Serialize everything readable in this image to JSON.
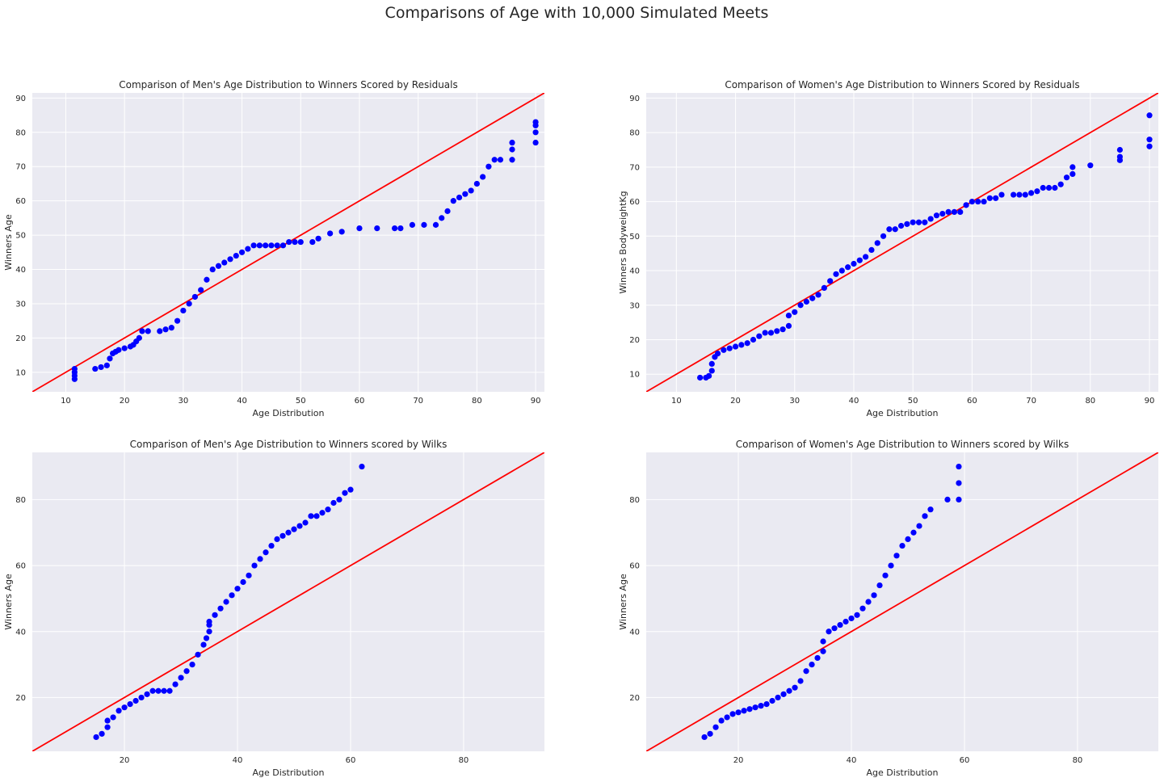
{
  "figure_title": "Comparisons of Age with 10,000 Simulated Meets",
  "colors": {
    "points": "#0000ff",
    "reference_line": "#ff0000",
    "axes_background": "#eaeaf2",
    "grid": "#ffffff"
  },
  "chart_data": [
    {
      "type": "scatter",
      "title": "Comparison of Men's Age Distribution to Winners Scored by Residuals",
      "xlabel": "Age Distribution",
      "ylabel": "Winners Age",
      "xlim": [
        4.3,
        91.5
      ],
      "ylim": [
        4.3,
        91.5
      ],
      "xticks": [
        10,
        20,
        30,
        40,
        50,
        60,
        70,
        80,
        90
      ],
      "yticks": [
        10,
        20,
        30,
        40,
        50,
        60,
        70,
        80,
        90
      ],
      "reference_line": "y = x",
      "grid": true,
      "series": [
        {
          "x": [
            11.5,
            11.5,
            11.5,
            11.5,
            15,
            16,
            17,
            17.5,
            18,
            18.5,
            19,
            20,
            21,
            21.5,
            22,
            22.5,
            23,
            24,
            26,
            27,
            28,
            29,
            30,
            31,
            32,
            33,
            34,
            35,
            36,
            37,
            38,
            39,
            40,
            41,
            42,
            43,
            44,
            45,
            46,
            47,
            48,
            49,
            50,
            52,
            53,
            55,
            57,
            60,
            63,
            66,
            67,
            69,
            71,
            73,
            74,
            75,
            76,
            77,
            78,
            79,
            80,
            81,
            82,
            83,
            84,
            86,
            86,
            86,
            90,
            90,
            90,
            90
          ],
          "y": [
            8,
            9,
            10,
            11,
            11,
            11.5,
            12,
            14,
            15.5,
            16,
            16.5,
            17,
            17.5,
            18,
            19,
            20,
            22,
            22,
            22,
            22.5,
            23,
            25,
            28,
            30,
            32,
            34,
            37,
            40,
            41,
            42,
            43,
            44,
            45,
            46,
            47,
            47,
            47,
            47,
            47,
            47,
            48,
            48,
            48,
            48,
            49,
            50.5,
            51,
            52,
            52,
            52,
            52,
            53,
            53,
            53,
            55,
            57,
            60,
            61,
            62,
            63,
            65,
            67,
            70,
            72,
            72,
            72,
            75,
            77,
            77,
            80,
            82,
            83
          ]
        }
      ]
    },
    {
      "type": "scatter",
      "title": "Comparison of Women's Age Distribution to Winners Scored by Residuals",
      "xlabel": "Age Distribution",
      "ylabel": "Winners BodyweightKg",
      "xlim": [
        4.9,
        91.5
      ],
      "ylim": [
        4.9,
        91.5
      ],
      "xticks": [
        10,
        20,
        30,
        40,
        50,
        60,
        70,
        80,
        90
      ],
      "yticks": [
        10,
        20,
        30,
        40,
        50,
        60,
        70,
        80,
        90
      ],
      "reference_line": "y = x",
      "grid": true,
      "series": [
        {
          "x": [
            14,
            15,
            15.5,
            16,
            16,
            16.5,
            17,
            18,
            19,
            20,
            21,
            22,
            23,
            24,
            25,
            26,
            27,
            28,
            29,
            29,
            30,
            31,
            32,
            33,
            34,
            35,
            36,
            37,
            38,
            39,
            40,
            41,
            42,
            43,
            44,
            45,
            46,
            47,
            48,
            49,
            50,
            51,
            52,
            53,
            54,
            55,
            56,
            57,
            58,
            59,
            60,
            61,
            62,
            63,
            64,
            65,
            67,
            68,
            69,
            70,
            71,
            72,
            73,
            74,
            75,
            76,
            77,
            77,
            80,
            85,
            85,
            85,
            90,
            90,
            90
          ],
          "y": [
            9,
            9,
            9.5,
            11,
            13,
            15,
            16,
            17,
            17.5,
            18,
            18.5,
            19,
            20,
            21,
            22,
            22,
            22.5,
            23,
            24,
            27,
            28,
            30,
            31,
            32,
            33,
            35,
            37,
            39,
            40,
            41,
            42,
            43,
            44,
            46,
            48,
            50,
            52,
            52,
            53,
            53.5,
            54,
            54,
            54,
            55,
            56,
            56.5,
            57,
            57,
            57,
            59,
            60,
            60,
            60,
            61,
            61,
            62,
            62,
            62,
            62,
            62.5,
            63,
            64,
            64,
            64,
            65,
            67,
            68,
            70,
            70.5,
            72,
            73,
            75,
            76,
            78,
            85
          ]
        }
      ]
    },
    {
      "type": "scatter",
      "title": "Comparison of Men's Age Distribution to Winners scored by Wilks",
      "xlabel": "Age Distribution",
      "ylabel": "Winners Age",
      "xlim": [
        3.7,
        94.3
      ],
      "ylim": [
        3.7,
        94.3
      ],
      "xticks": [
        20,
        40,
        60,
        80
      ],
      "yticks": [
        20,
        40,
        60,
        80
      ],
      "reference_line": "y = x",
      "grid": true,
      "series": [
        {
          "x": [
            15,
            16,
            17,
            17,
            18,
            19,
            20,
            21,
            22,
            23,
            24,
            25,
            26,
            27,
            28,
            29,
            30,
            31,
            32,
            33,
            34,
            34.5,
            35,
            35,
            35,
            36,
            37,
            38,
            39,
            40,
            41,
            42,
            43,
            44,
            45,
            46,
            47,
            48,
            49,
            50,
            51,
            52,
            53,
            54,
            55,
            56,
            57,
            58,
            59,
            60,
            62
          ],
          "y": [
            8,
            9,
            11,
            13,
            14,
            16,
            17,
            18,
            19,
            20,
            21,
            22,
            22,
            22,
            22,
            24,
            26,
            28,
            30,
            33,
            36,
            38,
            40,
            42,
            43,
            45,
            47,
            49,
            51,
            53,
            55,
            57,
            60,
            62,
            64,
            66,
            68,
            69,
            70,
            71,
            72,
            73,
            75,
            75,
            76,
            77,
            79,
            80,
            82,
            83,
            90
          ]
        }
      ]
    },
    {
      "type": "scatter",
      "title": "Comparison of Women's Age Distribution to Winners scored by Wilks",
      "xlabel": "Age Distribution",
      "ylabel": "Winners Age",
      "xlim": [
        3.7,
        94.3
      ],
      "ylim": [
        3.7,
        94.3
      ],
      "xticks": [
        20,
        40,
        60,
        80
      ],
      "yticks": [
        20,
        40,
        60,
        80
      ],
      "reference_line": "y = x",
      "grid": true,
      "series": [
        {
          "x": [
            14,
            15,
            16,
            17,
            18,
            19,
            20,
            21,
            22,
            23,
            24,
            25,
            26,
            27,
            28,
            29,
            30,
            31,
            32,
            33,
            34,
            35,
            35,
            36,
            37,
            38,
            39,
            40,
            41,
            42,
            43,
            44,
            45,
            46,
            47,
            48,
            49,
            50,
            51,
            52,
            53,
            54,
            57,
            59,
            59,
            59
          ],
          "y": [
            8,
            9,
            11,
            13,
            14,
            15,
            15.5,
            16,
            16.5,
            17,
            17.5,
            18,
            19,
            20,
            21,
            22,
            23,
            25,
            28,
            30,
            32,
            34,
            37,
            40,
            41,
            42,
            43,
            44,
            45,
            47,
            49,
            51,
            54,
            57,
            60,
            63,
            66,
            68,
            70,
            72,
            75,
            77,
            80,
            80,
            85,
            90
          ]
        }
      ]
    }
  ]
}
